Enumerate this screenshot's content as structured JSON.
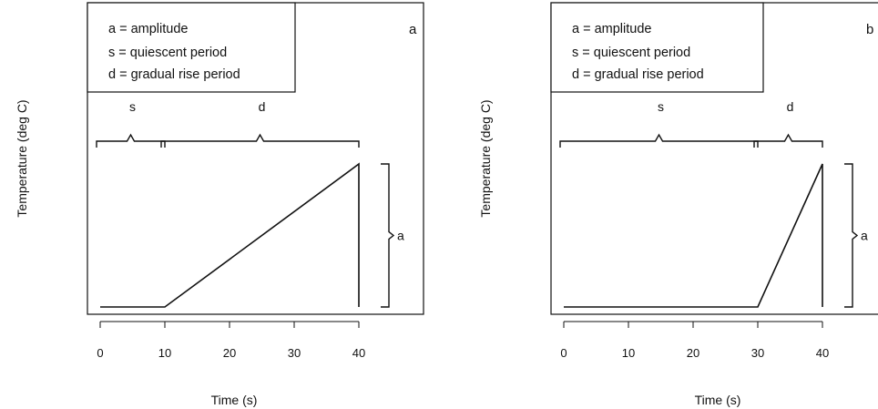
{
  "chart_data": [
    {
      "type": "line",
      "panel_label": "a",
      "xlabel": "Time (s)",
      "ylabel": "Temperature (deg C)",
      "xlim": [
        -2,
        49
      ],
      "x_ticks": [
        "0",
        "10",
        "20",
        "30",
        "40"
      ],
      "y_ticks": [],
      "legend": {
        "placement": "top-left",
        "entries": [
          "a = amplitude",
          "s = quiescent period",
          "d = gradual rise period"
        ]
      },
      "series": [
        {
          "x": [
            0,
            10,
            40,
            40
          ],
          "y": [
            0,
            0,
            1,
            0
          ]
        }
      ],
      "annotations": [
        {
          "label": "s",
          "from": 0,
          "to": 10,
          "orientation": "horizontal"
        },
        {
          "label": "d",
          "from": 10,
          "to": 40,
          "orientation": "horizontal"
        },
        {
          "label": "a",
          "from": 0,
          "to": 1,
          "orientation": "vertical"
        }
      ],
      "grid": false
    },
    {
      "type": "line",
      "panel_label": "b",
      "xlabel": "Time (s)",
      "ylabel": "Temperature (deg C)",
      "xlim": [
        -2,
        49
      ],
      "x_ticks": [
        "0",
        "10",
        "20",
        "30",
        "40"
      ],
      "y_ticks": [],
      "legend": {
        "placement": "top-left",
        "entries": [
          "a = amplitude",
          "s = quiescent period",
          "d = gradual rise period"
        ]
      },
      "series": [
        {
          "x": [
            0,
            30,
            40,
            40
          ],
          "y": [
            0,
            0,
            1,
            0
          ]
        }
      ],
      "annotations": [
        {
          "label": "s",
          "from": 0,
          "to": 30,
          "orientation": "horizontal"
        },
        {
          "label": "d",
          "from": 30,
          "to": 40,
          "orientation": "horizontal"
        },
        {
          "label": "a",
          "from": 0,
          "to": 1,
          "orientation": "vertical"
        }
      ],
      "grid": false
    }
  ]
}
